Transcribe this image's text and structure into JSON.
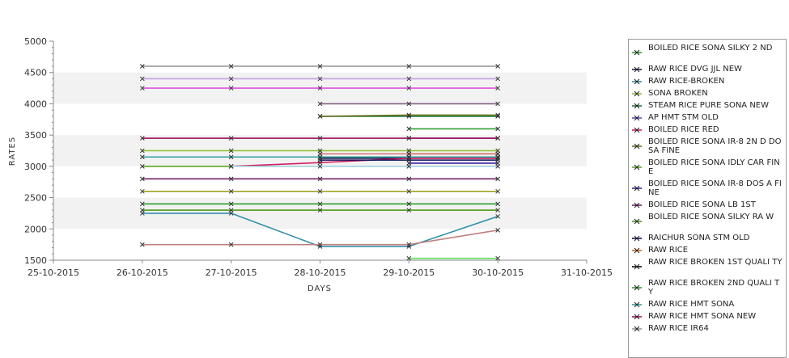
{
  "chart_data": {
    "type": "line",
    "xlabel": "DAYS",
    "ylabel": "RATES",
    "ylim": [
      1500,
      5000
    ],
    "y_ticks": [
      "5000",
      "4500",
      "4000",
      "3500",
      "3000",
      "2500",
      "2000",
      "1500"
    ],
    "x_ticks": [
      "25-10-2015",
      "26-10-2015",
      "27-10-2015",
      "28-10-2015",
      "29-10-2015",
      "30-10-2015",
      "31-10-2015"
    ],
    "grid": "horizontal alternating bands",
    "legend_position": "right",
    "series": [
      {
        "name": "BOILED RICE SONA SILKY 2 ND",
        "color": "#2ca02c",
        "points": [
          [
            1,
            2400
          ],
          [
            2,
            2400
          ],
          [
            3,
            2400
          ],
          [
            4,
            2400
          ],
          [
            5,
            2400
          ]
        ]
      },
      {
        "name": "RAW RICE DVG JJL NEW",
        "color": "#1a1a4a",
        "points": [
          [
            3,
            3130
          ],
          [
            4,
            3130
          ],
          [
            5,
            3130
          ]
        ]
      },
      {
        "name": "RAW RICE-BROKEN",
        "color": "#2f8fa8",
        "points": [
          [
            1,
            2250
          ],
          [
            2,
            2250
          ],
          [
            3,
            1720
          ],
          [
            4,
            1720
          ],
          [
            5,
            2200
          ]
        ]
      },
      {
        "name": "SONA BROKEN",
        "color": "#8fbf2a",
        "points": [
          [
            1,
            3250
          ],
          [
            2,
            3250
          ],
          [
            3,
            3250
          ],
          [
            4,
            3250
          ],
          [
            5,
            3250
          ]
        ]
      },
      {
        "name": "STEAM RICE PURE SONA NEW",
        "color": "#1e7a3a",
        "points": [
          [
            3,
            3800
          ],
          [
            4,
            3800
          ],
          [
            5,
            3800
          ]
        ]
      },
      {
        "name": "AP HMT STM OLD",
        "color": "#6a50b0",
        "points": [
          [
            4,
            3450
          ],
          [
            5,
            3450
          ]
        ]
      },
      {
        "name": "BOILED RICE RED",
        "color": "#d02060",
        "points": [
          [
            2,
            3000
          ],
          [
            3,
            3060
          ],
          [
            4,
            3130
          ],
          [
            5,
            3130
          ]
        ]
      },
      {
        "name": "BOILED RICE SONA  IR-8 2N D DOSA FINE",
        "color": "#707020",
        "points": [
          [
            3,
            3800
          ],
          [
            4,
            3820
          ],
          [
            5,
            3820
          ]
        ]
      },
      {
        "name": "BOILED RICE SONA IDLY CAR  FINE",
        "color": "#5aa820",
        "points": [
          [
            1,
            3000
          ],
          [
            2,
            3000
          ]
        ]
      },
      {
        "name": "BOILED RICE SONA IR-8 DOS A FINE",
        "color": "#4020a0",
        "points": [
          [
            4,
            3050
          ],
          [
            5,
            3050
          ]
        ]
      },
      {
        "name": "BOILED RICE SONA LB 1ST",
        "color": "#70206a",
        "points": [
          [
            1,
            2800
          ],
          [
            2,
            2800
          ],
          [
            3,
            2800
          ],
          [
            4,
            2800
          ],
          [
            5,
            2800
          ]
        ]
      },
      {
        "name": "BOILED RICE SONA SILKY RA W",
        "color": "#4a9a18",
        "points": [
          [
            1,
            2300
          ],
          [
            2,
            2300
          ],
          [
            3,
            2300
          ],
          [
            4,
            2300
          ],
          [
            5,
            2300
          ]
        ]
      },
      {
        "name": "RAICHUR SONA STM OLD",
        "color": "#10105a",
        "points": [
          [
            3,
            3100
          ],
          [
            4,
            3100
          ],
          [
            5,
            3100
          ]
        ]
      },
      {
        "name": "RAW RICE",
        "color": "#d07010",
        "points": [
          [
            4,
            3200
          ],
          [
            5,
            3200
          ]
        ]
      },
      {
        "name": "RAW RICE BROKEN 1ST QUALI TY",
        "color": "#101010",
        "points": [
          [
            4,
            3150
          ],
          [
            5,
            3150
          ]
        ]
      },
      {
        "name": "RAW RICE BROKEN 2ND QUALI TY",
        "color": "#30a030",
        "points": [
          [
            4,
            3600
          ],
          [
            5,
            3600
          ]
        ]
      },
      {
        "name": "RAW RICE HMT SONA",
        "color": "#30a0a0",
        "points": [
          [
            1,
            3150
          ],
          [
            2,
            3150
          ],
          [
            3,
            3150
          ],
          [
            4,
            3150
          ],
          [
            5,
            3150
          ]
        ]
      },
      {
        "name": "RAW RICE HMT SONA NEW",
        "color": "#a01060",
        "points": [
          [
            1,
            3450
          ],
          [
            2,
            3450
          ],
          [
            3,
            3450
          ],
          [
            4,
            3450
          ],
          [
            5,
            3450
          ]
        ]
      },
      {
        "name": "RAW RICE IR64",
        "color": "#9a9a9a",
        "points": [
          [
            1,
            4600
          ],
          [
            2,
            4600
          ],
          [
            3,
            4600
          ],
          [
            4,
            4600
          ],
          [
            5,
            4600
          ]
        ]
      },
      {
        "name": "",
        "color": "#c0a0e0",
        "points": [
          [
            1,
            4400
          ],
          [
            2,
            4400
          ],
          [
            3,
            4400
          ],
          [
            4,
            4400
          ],
          [
            5,
            4400
          ]
        ]
      },
      {
        "name": "",
        "color": "#e050e0",
        "points": [
          [
            1,
            4250
          ],
          [
            2,
            4250
          ],
          [
            3,
            4250
          ],
          [
            4,
            4250
          ],
          [
            5,
            4250
          ]
        ]
      },
      {
        "name": "",
        "color": "#806080",
        "points": [
          [
            3,
            4000
          ],
          [
            4,
            4000
          ],
          [
            5,
            4000
          ]
        ]
      },
      {
        "name": "",
        "color": "#a0a020",
        "points": [
          [
            1,
            2600
          ],
          [
            2,
            2600
          ],
          [
            3,
            2600
          ],
          [
            4,
            2600
          ],
          [
            5,
            2600
          ]
        ]
      },
      {
        "name": "",
        "color": "#c08080",
        "points": [
          [
            1,
            1750
          ],
          [
            2,
            1750
          ],
          [
            3,
            1750
          ],
          [
            4,
            1750
          ],
          [
            5,
            1980
          ]
        ]
      },
      {
        "name": "",
        "color": "#a0d0e0",
        "points": [
          [
            2,
            3000
          ],
          [
            3,
            3000
          ],
          [
            4,
            3000
          ],
          [
            5,
            3000
          ]
        ]
      },
      {
        "name": "",
        "color": "#60e060",
        "points": [
          [
            4,
            1530
          ],
          [
            5,
            1530
          ]
        ]
      },
      {
        "name": "",
        "color": "#d07070",
        "points": [
          [
            3,
            3200
          ],
          [
            4,
            3200
          ],
          [
            5,
            3200
          ]
        ]
      }
    ]
  }
}
